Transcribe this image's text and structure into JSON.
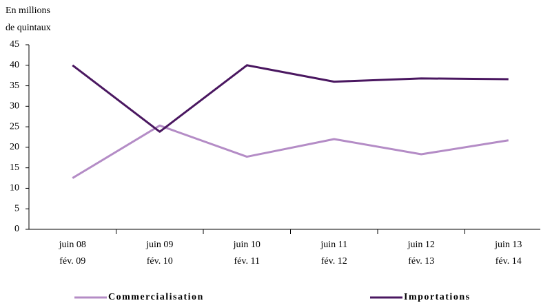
{
  "chart_data": {
    "type": "line",
    "y_label": [
      "En millions",
      "de quintaux"
    ],
    "categories": [
      [
        "juin 08",
        "fév. 09"
      ],
      [
        "juin 09",
        "fév. 10"
      ],
      [
        "juin 10",
        "fév. 11"
      ],
      [
        "juin 11",
        "fév. 12"
      ],
      [
        "juin 12",
        "fév. 13"
      ],
      [
        "juin 13",
        "fév. 14"
      ]
    ],
    "series": [
      {
        "name": "Commercialisation",
        "color": "#b48cc6",
        "values": [
          12.5,
          25.3,
          17.7,
          22.0,
          18.3,
          21.7
        ]
      },
      {
        "name": "Importations",
        "color": "#4a1760",
        "values": [
          40,
          23.8,
          40,
          36,
          36.8,
          36.6
        ]
      }
    ],
    "ylim": [
      0,
      45
    ],
    "yticks": [
      0,
      5,
      10,
      15,
      20,
      25,
      30,
      35,
      40,
      45
    ],
    "grid": false,
    "legend": "bottom"
  }
}
